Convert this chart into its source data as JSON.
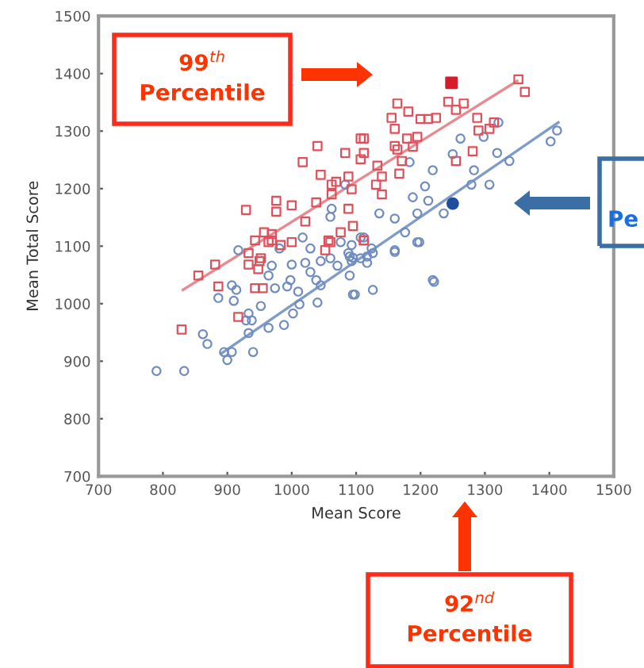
{
  "chart_data": {
    "type": "scatter",
    "xlabel": "Mean Score",
    "ylabel": "Mean Total Score",
    "xlim": [
      700,
      1500
    ],
    "ylim": [
      700,
      1500
    ],
    "xticks": [
      700,
      800,
      900,
      1000,
      1100,
      1200,
      1300,
      1400,
      1500
    ],
    "yticks": [
      700,
      800,
      900,
      1000,
      1100,
      1200,
      1300,
      1400,
      1500
    ],
    "grid": false,
    "legend": false,
    "annotations": [
      "99$^{th}$\nPercentile",
      "92$^{nd}$\nPercentile",
      "Pe"
    ],
    "series": [
      {
        "marker": "circle",
        "color": "#6f8cc0",
        "x": [
          790,
          833,
          862,
          869,
          895,
          907,
          900,
          940,
          886,
          907,
          914,
          910,
          933,
          929,
          938,
          933,
          952,
          964,
          974,
          988,
          1002,
          1012,
          1040,
          1010,
          998,
          993,
          1000,
          1021,
          1029,
          1038,
          1045,
          964,
          917,
          1060,
          1071,
          1076,
          1090,
          1095,
          1107,
          1088,
          1095,
          1117,
          1090,
          1098,
          1126,
          1126,
          1160,
          1198,
          1221,
          1017,
          1029,
          1060,
          1062,
          1083,
          1045,
          1112,
          1093,
          969,
          981,
          1107,
          1136,
          1160,
          1176,
          1188,
          1195,
          1207,
          1219,
          1212,
          1195,
          1183,
          1250,
          1262,
          1279,
          1307,
          1283,
          1298,
          1319,
          1338,
          1321,
          1402,
          1412,
          1236,
          1124,
          1117,
          1160,
          1219,
          1093
        ],
        "values": [
          883,
          883,
          947,
          930,
          916,
          916,
          902,
          916,
          1010,
          1032,
          1024,
          1005,
          983,
          971,
          971,
          949,
          996,
          958,
          1027,
          963,
          983,
          999,
          1002,
          1021,
          1041,
          1030,
          1068,
          1071,
          1055,
          1041,
          1032,
          1049,
          1093,
          1079,
          1066,
          1107,
          1082,
          1016,
          1079,
          1088,
          1080,
          1071,
          1049,
          1016,
          1024,
          1088,
          1090,
          1107,
          1038,
          1115,
          1096,
          1151,
          1165,
          1207,
          1074,
          1115,
          1102,
          1066,
          1096,
          1115,
          1157,
          1148,
          1124,
          1185,
          1157,
          1204,
          1232,
          1179,
          1107,
          1246,
          1260,
          1287,
          1207,
          1207,
          1232,
          1290,
          1262,
          1248,
          1315,
          1282,
          1301,
          1157,
          1096,
          1082,
          1093,
          1041,
          1074
        ]
      },
      {
        "marker": "square",
        "color": "#e0505a",
        "x": [
          829,
          855,
          881,
          886,
          917,
          933,
          948,
          943,
          955,
          952,
          943,
          969,
          1000,
          1052,
          1057,
          1112,
          929,
          957,
          976,
          976,
          1000,
          1017,
          1040,
          1045,
          1062,
          1062,
          1069,
          1083,
          1107,
          1112,
          1038,
          1021,
          964,
          983,
          933,
          950,
          969,
          1060,
          1076,
          1088,
          1095,
          1088,
          1093,
          1112,
          1107,
          1133,
          1140,
          1131,
          1140,
          1164,
          1167,
          1171,
          1179,
          1188,
          1195,
          1200,
          1212,
          1224,
          1155,
          1160,
          1164,
          1181,
          1243,
          1255,
          1267,
          1288,
          1290,
          1307,
          1314,
          1352,
          1362,
          1255,
          1281,
          1160,
          1112
        ],
        "values": [
          955,
          1049,
          1068,
          1030,
          977,
          1068,
          1060,
          1027,
          1027,
          1079,
          1110,
          1110,
          1107,
          1093,
          1110,
          1110,
          1163,
          1124,
          1179,
          1160,
          1171,
          1246,
          1274,
          1224,
          1207,
          1190,
          1212,
          1262,
          1251,
          1287,
          1176,
          1143,
          1107,
          1102,
          1088,
          1074,
          1121,
          1107,
          1124,
          1165,
          1135,
          1221,
          1199,
          1262,
          1287,
          1240,
          1221,
          1207,
          1190,
          1268,
          1226,
          1248,
          1287,
          1273,
          1290,
          1321,
          1321,
          1323,
          1323,
          1304,
          1348,
          1334,
          1351,
          1337,
          1348,
          1323,
          1301,
          1304,
          1315,
          1390,
          1368,
          1248,
          1265,
          1274,
          1110
        ]
      },
      {
        "marker": "circle",
        "color": "#1f4e9c",
        "x": [
          1250
        ],
        "values": [
          1174
        ]
      },
      {
        "marker": "square",
        "color": "#d81b2a",
        "x": [
          1248
        ],
        "values": [
          1384
        ]
      },
      {
        "type": "line",
        "color": "#e88a90",
        "x": [
          831,
          1350
        ],
        "values": [
          1024,
          1387
        ]
      },
      {
        "type": "line",
        "color": "#7f9cc8",
        "x": [
          890,
          1414
        ],
        "values": [
          913,
          1315
        ]
      }
    ]
  }
}
